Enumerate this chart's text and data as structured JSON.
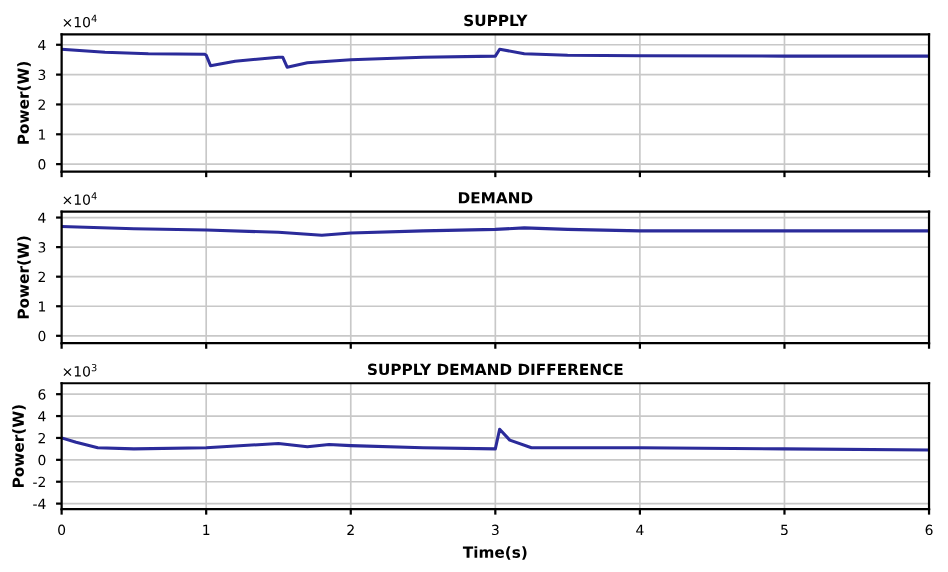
{
  "chart_data": [
    {
      "type": "line",
      "title": "SUPPLY",
      "ylabel": "Power(W)",
      "annotations": [
        "×10$^{4}$"
      ],
      "xlim": [
        0,
        6
      ],
      "xticks": [
        0,
        1,
        2,
        3,
        4,
        5,
        6
      ],
      "ylim": [
        -0.25,
        4.35
      ],
      "yticks": [
        0,
        1,
        2,
        3,
        4
      ],
      "grid": true,
      "tick_labels": "y",
      "series": [
        {
          "color": "#2b2b9a",
          "x": [
            0,
            0.3,
            0.6,
            0.99,
            1.0,
            1.03,
            1.2,
            1.5,
            1.53,
            1.56,
            1.7,
            2,
            2.5,
            3.0,
            3.03,
            3.2,
            3.5,
            4,
            5,
            6
          ],
          "values": [
            3.85,
            3.75,
            3.7,
            3.68,
            3.65,
            3.3,
            3.45,
            3.58,
            3.58,
            3.25,
            3.4,
            3.5,
            3.58,
            3.62,
            3.85,
            3.7,
            3.65,
            3.63,
            3.62,
            3.62
          ]
        }
      ]
    },
    {
      "type": "line",
      "title": "DEMAND",
      "ylabel": "Power(W)",
      "annotations": [
        "×10$^{4}$"
      ],
      "xlim": [
        0,
        6
      ],
      "xticks": [
        0,
        1,
        2,
        3,
        4,
        5,
        6
      ],
      "ylim": [
        -0.25,
        4.2
      ],
      "yticks": [
        0,
        1,
        2,
        3,
        4
      ],
      "grid": true,
      "tick_labels": "y",
      "series": [
        {
          "color": "#2b2b9a",
          "x": [
            0,
            0.5,
            1,
            1.5,
            1.8,
            2,
            2.5,
            3,
            3.2,
            3.5,
            4,
            5,
            6
          ],
          "values": [
            3.7,
            3.62,
            3.58,
            3.5,
            3.4,
            3.48,
            3.55,
            3.6,
            3.65,
            3.6,
            3.55,
            3.55,
            3.55
          ]
        }
      ]
    },
    {
      "type": "line",
      "title": "SUPPLY DEMAND DIFFERENCE",
      "ylabel": "Power(W)",
      "xlabel": "Time(s)",
      "annotations": [
        "×10$^{3}$"
      ],
      "xlim": [
        0,
        6
      ],
      "xticks": [
        0,
        1,
        2,
        3,
        4,
        5,
        6
      ],
      "ylim": [
        -4.5,
        7
      ],
      "yticks": [
        6,
        4,
        2,
        0,
        {
          "value": -2,
          "label": "-2"
        },
        {
          "value": -4,
          "label": "-4"
        }
      ],
      "grid": true,
      "series": [
        {
          "color": "#2b2b9a",
          "x": [
            0,
            0.1,
            0.25,
            0.5,
            1,
            1.5,
            1.7,
            1.85,
            2,
            2.5,
            3,
            3.03,
            3.1,
            3.25,
            4,
            5,
            6
          ],
          "values": [
            2.0,
            1.6,
            1.1,
            1.0,
            1.1,
            1.5,
            1.2,
            1.4,
            1.3,
            1.1,
            1.0,
            2.8,
            1.8,
            1.1,
            1.1,
            1.0,
            0.9
          ]
        }
      ]
    }
  ]
}
